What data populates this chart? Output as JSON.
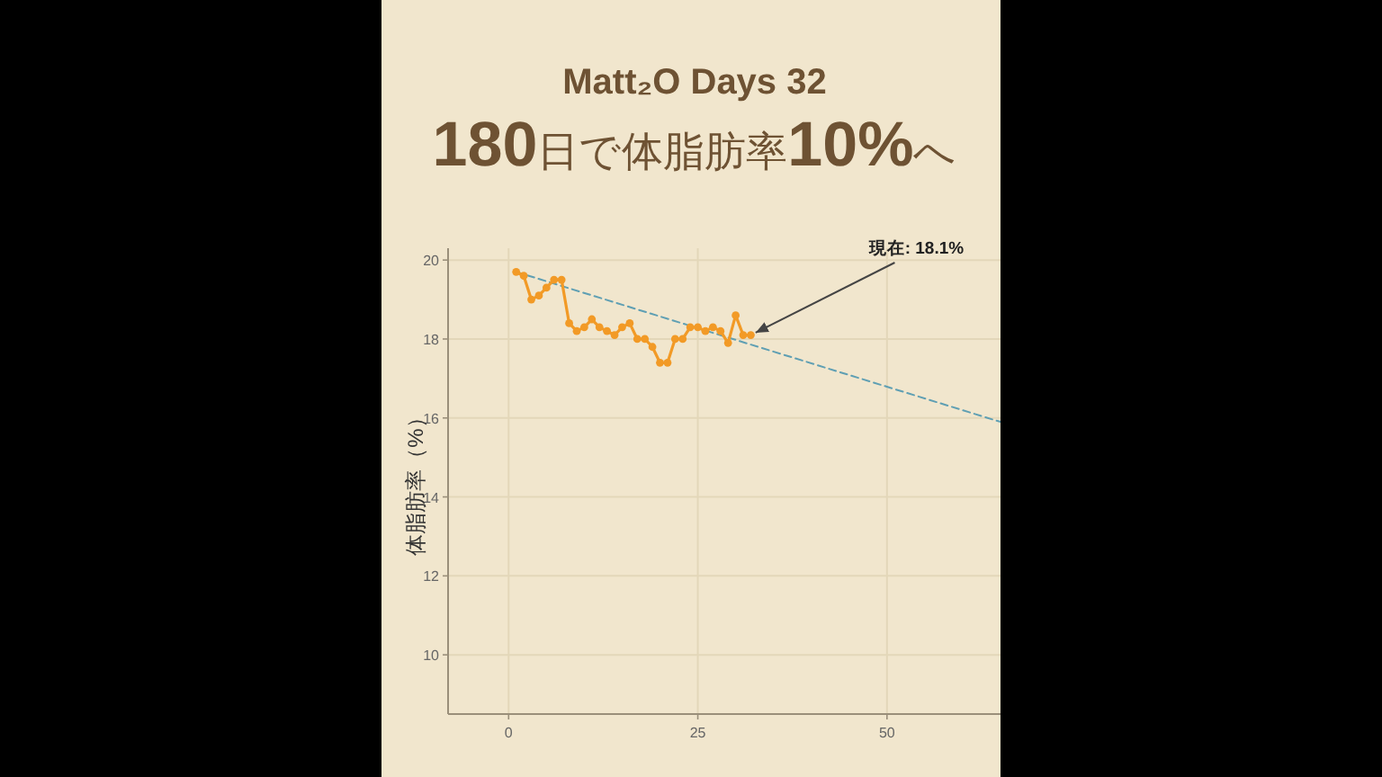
{
  "chart_data": {
    "type": "line",
    "title": "Matt₂O Days 32",
    "subtitle": "180日で体脂肪率10%へ",
    "ylabel": "体脂肪率（%）",
    "series": [
      {
        "x": [
          1,
          2,
          3,
          4,
          5,
          6,
          7,
          8,
          9,
          10,
          11,
          12,
          13,
          14,
          15,
          16,
          17,
          18,
          19,
          20,
          21,
          22,
          23,
          24,
          25,
          26,
          27,
          28,
          29,
          30,
          31,
          32
        ],
        "values": [
          19.7,
          19.6,
          19.0,
          19.1,
          19.3,
          19.5,
          19.5,
          18.4,
          18.2,
          18.3,
          18.5,
          18.3,
          18.2,
          18.1,
          18.3,
          18.4,
          18.0,
          18.0,
          17.8,
          17.4,
          17.4,
          18.0,
          18.0,
          18.3,
          18.3,
          18.2,
          18.3,
          18.2,
          17.9,
          18.6,
          18.1,
          18.1
        ],
        "color": "#f29a26",
        "marker": "circle"
      },
      {
        "x": [
          1,
          65
        ],
        "values": [
          19.7,
          15.9
        ],
        "color": "#5f9fb3",
        "line_style": "dashed",
        "marker": "none"
      }
    ],
    "xlim": [
      -8,
      65
    ],
    "ylim": [
      8.5,
      20.3
    ],
    "xticks": [
      0,
      25,
      50
    ],
    "yticks": [
      10,
      12,
      14,
      16,
      18,
      20
    ],
    "grid": true,
    "annotations": [
      {
        "text": "現在: 18.1%",
        "x": 32,
        "y": 18.1
      }
    ]
  }
}
